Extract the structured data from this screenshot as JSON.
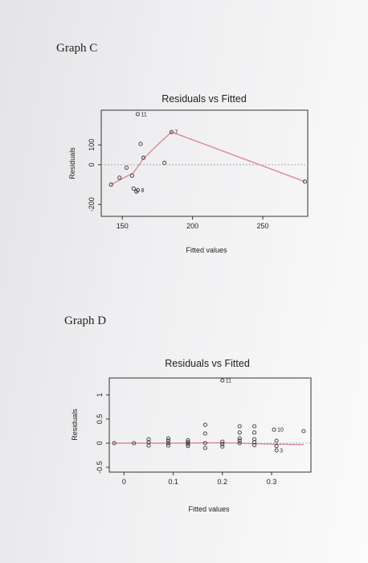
{
  "graphs": {
    "c_label": "Graph C",
    "d_label": "Graph D"
  },
  "colors": {
    "smooth": "#d98b95",
    "point": "#333333",
    "zero_line": "#aaaaaa"
  },
  "chart_data": [
    {
      "type": "scatter",
      "title": "Residuals vs Fitted",
      "xlabel": "Fitted values",
      "ylabel": "Residuals",
      "xlim": [
        135,
        282
      ],
      "ylim": [
        -260,
        275
      ],
      "xticks": [
        150,
        200,
        250
      ],
      "yticks": [
        -200,
        0,
        100
      ],
      "points": [
        {
          "x": 142,
          "y": -100
        },
        {
          "x": 148,
          "y": -65
        },
        {
          "x": 153,
          "y": -15
        },
        {
          "x": 157,
          "y": -55
        },
        {
          "x": 158,
          "y": -120
        },
        {
          "x": 160,
          "y": -135
        },
        {
          "x": 161,
          "y": -128
        },
        {
          "x": 161,
          "y": 255
        },
        {
          "x": 163,
          "y": 105
        },
        {
          "x": 165,
          "y": 35
        },
        {
          "x": 180,
          "y": 10
        },
        {
          "x": 185,
          "y": 165
        },
        {
          "x": 280,
          "y": -85
        }
      ],
      "labeled_points": [
        {
          "label": "11",
          "x": 161,
          "y": 255
        },
        {
          "label": "7",
          "x": 185,
          "y": 165
        },
        {
          "label": "8",
          "x": 161,
          "y": -128
        }
      ],
      "smooth": [
        {
          "x": 142,
          "y": -100
        },
        {
          "x": 150,
          "y": -70
        },
        {
          "x": 158,
          "y": -40
        },
        {
          "x": 165,
          "y": 30
        },
        {
          "x": 175,
          "y": 100
        },
        {
          "x": 185,
          "y": 165
        },
        {
          "x": 280,
          "y": -85
        }
      ]
    },
    {
      "type": "scatter",
      "title": "Residuals vs Fitted",
      "xlabel": "Fitted values",
      "ylabel": "Residuals",
      "xlim": [
        -0.03,
        0.38
      ],
      "ylim": [
        -0.6,
        1.35
      ],
      "xticks": [
        0.0,
        0.1,
        0.2,
        0.3
      ],
      "yticks": [
        -0.5,
        0.0,
        0.5,
        1.0
      ],
      "points": [
        {
          "x": -0.02,
          "y": 0.0
        },
        {
          "x": 0.02,
          "y": 0.0
        },
        {
          "x": 0.05,
          "y": -0.05
        },
        {
          "x": 0.05,
          "y": 0.02
        },
        {
          "x": 0.05,
          "y": 0.08
        },
        {
          "x": 0.09,
          "y": -0.05
        },
        {
          "x": 0.09,
          "y": 0.0
        },
        {
          "x": 0.09,
          "y": 0.05
        },
        {
          "x": 0.09,
          "y": 0.1
        },
        {
          "x": 0.13,
          "y": -0.06
        },
        {
          "x": 0.13,
          "y": -0.02
        },
        {
          "x": 0.13,
          "y": 0.02
        },
        {
          "x": 0.13,
          "y": 0.06
        },
        {
          "x": 0.165,
          "y": -0.1
        },
        {
          "x": 0.165,
          "y": 0.0
        },
        {
          "x": 0.165,
          "y": 0.2
        },
        {
          "x": 0.165,
          "y": 0.38
        },
        {
          "x": 0.2,
          "y": -0.07
        },
        {
          "x": 0.2,
          "y": -0.02
        },
        {
          "x": 0.2,
          "y": 0.03
        },
        {
          "x": 0.2,
          "y": 1.3
        },
        {
          "x": 0.235,
          "y": 0.0
        },
        {
          "x": 0.235,
          "y": 0.05
        },
        {
          "x": 0.235,
          "y": 0.1
        },
        {
          "x": 0.235,
          "y": 0.22
        },
        {
          "x": 0.235,
          "y": 0.35
        },
        {
          "x": 0.265,
          "y": -0.04
        },
        {
          "x": 0.265,
          "y": 0.02
        },
        {
          "x": 0.265,
          "y": 0.08
        },
        {
          "x": 0.265,
          "y": 0.22
        },
        {
          "x": 0.265,
          "y": 0.35
        },
        {
          "x": 0.305,
          "y": 0.28
        },
        {
          "x": 0.31,
          "y": -0.15
        },
        {
          "x": 0.31,
          "y": -0.06
        },
        {
          "x": 0.31,
          "y": 0.05
        },
        {
          "x": 0.365,
          "y": 0.25
        }
      ],
      "labeled_points": [
        {
          "label": "11",
          "x": 0.2,
          "y": 1.3
        },
        {
          "label": "10",
          "x": 0.305,
          "y": 0.28
        },
        {
          "label": "3",
          "x": 0.31,
          "y": -0.15
        }
      ],
      "smooth": [
        {
          "x": -0.02,
          "y": 0.0
        },
        {
          "x": 0.1,
          "y": 0.0
        },
        {
          "x": 0.2,
          "y": 0.01
        },
        {
          "x": 0.3,
          "y": -0.02
        },
        {
          "x": 0.365,
          "y": -0.03
        }
      ]
    }
  ]
}
